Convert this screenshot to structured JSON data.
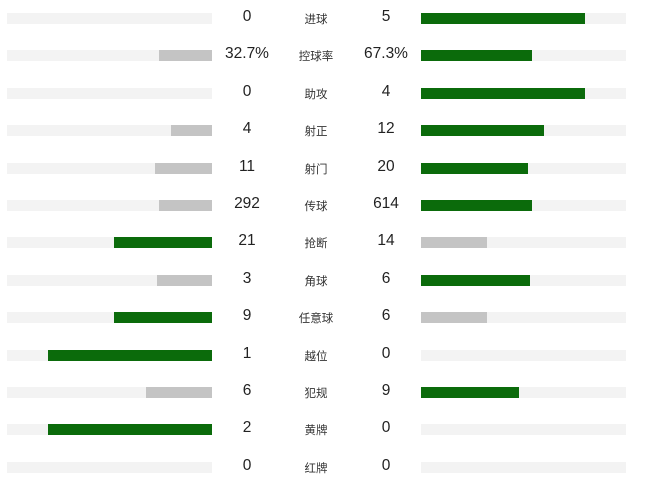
{
  "colors": {
    "leading": "#0b6b0b",
    "trailing": "#c4c4c4",
    "track": "#f3f3f3"
  },
  "stats": [
    {
      "label": "进球",
      "home": "0",
      "away": "5",
      "home_bar": 0,
      "away_bar": 0.8,
      "leader": "away"
    },
    {
      "label": "控球率",
      "home": "32.7%",
      "away": "67.3%",
      "home_bar": 0.26,
      "away_bar": 0.54,
      "leader": "away"
    },
    {
      "label": "助攻",
      "home": "0",
      "away": "4",
      "home_bar": 0,
      "away_bar": 0.8,
      "leader": "away"
    },
    {
      "label": "射正",
      "home": "4",
      "away": "12",
      "home_bar": 0.2,
      "away_bar": 0.6,
      "leader": "away"
    },
    {
      "label": "射门",
      "home": "11",
      "away": "20",
      "home_bar": 0.28,
      "away_bar": 0.52,
      "leader": "away"
    },
    {
      "label": "传球",
      "home": "292",
      "away": "614",
      "home_bar": 0.26,
      "away_bar": 0.54,
      "leader": "away"
    },
    {
      "label": "抢断",
      "home": "21",
      "away": "14",
      "home_bar": 0.48,
      "away_bar": 0.32,
      "leader": "home"
    },
    {
      "label": "角球",
      "home": "3",
      "away": "6",
      "home_bar": 0.27,
      "away_bar": 0.53,
      "leader": "away"
    },
    {
      "label": "任意球",
      "home": "9",
      "away": "6",
      "home_bar": 0.48,
      "away_bar": 0.32,
      "leader": "home"
    },
    {
      "label": "越位",
      "home": "1",
      "away": "0",
      "home_bar": 0.8,
      "away_bar": 0,
      "leader": "home"
    },
    {
      "label": "犯规",
      "home": "6",
      "away": "9",
      "home_bar": 0.32,
      "away_bar": 0.48,
      "leader": "away"
    },
    {
      "label": "黄牌",
      "home": "2",
      "away": "0",
      "home_bar": 0.8,
      "away_bar": 0,
      "leader": "home"
    },
    {
      "label": "红牌",
      "home": "0",
      "away": "0",
      "home_bar": 0,
      "away_bar": 0,
      "leader": "none"
    }
  ]
}
